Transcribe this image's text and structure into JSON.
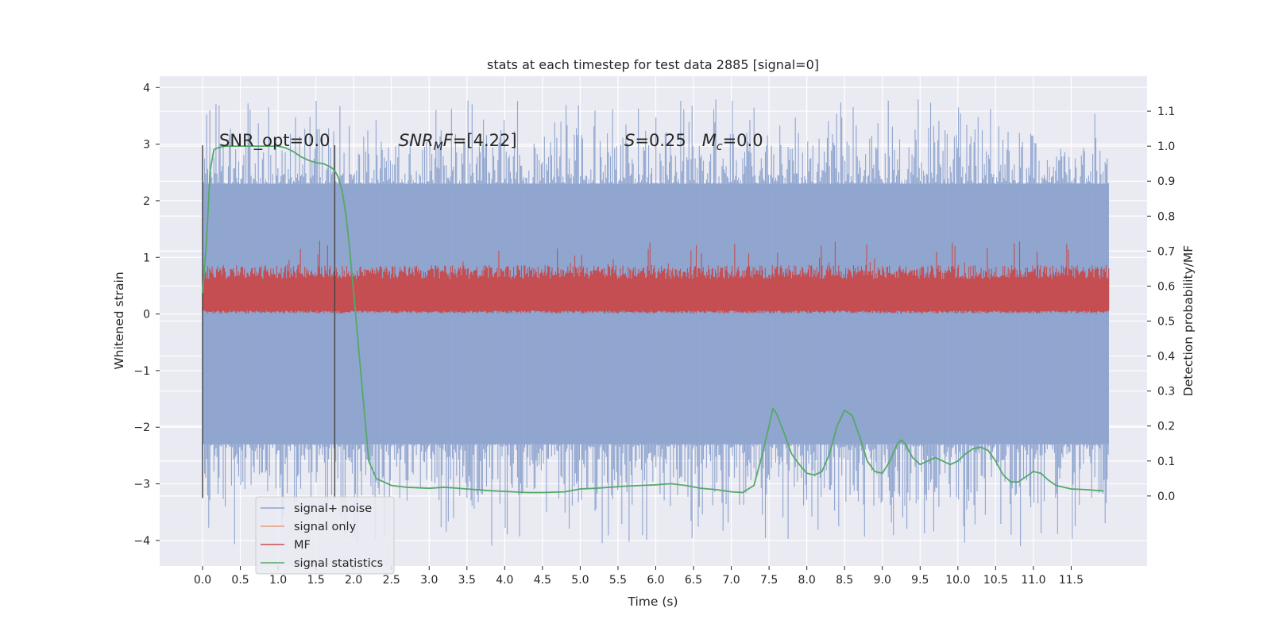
{
  "chart_data": {
    "type": "line",
    "title": "stats at each timestep for test data 2885 [signal=0]",
    "xlabel": "Time (s)",
    "ylabel": "Whitened strain",
    "y2label": "Detection probability/MF",
    "xlim": [
      -0.58,
      12.6
    ],
    "ylim": [
      -4.45,
      4.2
    ],
    "y2lim": [
      -0.2,
      1.2
    ],
    "xticks": [
      0.0,
      0.5,
      1.0,
      1.5,
      2.0,
      2.5,
      3.0,
      3.5,
      4.0,
      4.5,
      5.0,
      5.5,
      6.0,
      6.5,
      7.0,
      7.5,
      8.0,
      8.5,
      9.0,
      9.5,
      10.0,
      10.5,
      11.0,
      11.5
    ],
    "xtick_labels": [
      "0.0",
      "0.5",
      "1.0",
      "1.5",
      "2.0",
      "2.5",
      "3.0",
      "3.5",
      "4.0",
      "4.5",
      "5.0",
      "5.5",
      "6.0",
      "6.5",
      "7.0",
      "7.5",
      "8.0",
      "8.5",
      "9.0",
      "9.5",
      "10.0",
      "10.5",
      "11.0",
      "11.5"
    ],
    "yticks": [
      -4,
      -3,
      -2,
      -1,
      0,
      1,
      2,
      3,
      4
    ],
    "ytick_labels": [
      "−4",
      "−3",
      "−2",
      "−1",
      "0",
      "1",
      "2",
      "3",
      "4"
    ],
    "y2ticks": [
      0.0,
      0.1,
      0.2,
      0.3,
      0.4,
      0.5,
      0.6,
      0.7,
      0.8,
      0.9,
      1.0,
      1.1
    ],
    "y2tick_labels": [
      "0.0",
      "0.1",
      "0.2",
      "0.3",
      "0.4",
      "0.5",
      "0.6",
      "0.7",
      "0.8",
      "0.9",
      "1.0",
      "1.1"
    ],
    "grid": true,
    "legend_location": "lower-left",
    "annotations": {
      "snr_opt": "SNR_opt=0.0",
      "snr_mf": "SNR_MF=[4.22]",
      "s_mc": "S=0.25   M_c=0.0"
    },
    "vlines": [
      0.0,
      1.75
    ],
    "vline_range": [
      -3.25,
      2.98
    ],
    "series": [
      {
        "name": "signal+ noise",
        "color": "#8fa5cf",
        "style": "dense-noise",
        "x_range": [
          0.0,
          12.0
        ],
        "envelope_low": -2.3,
        "envelope_high": 2.3,
        "min": -4.1,
        "max": 3.8
      },
      {
        "name": "signal only",
        "color": "#e6a07f",
        "style": "flat",
        "values": []
      },
      {
        "name": "MF",
        "color": "#c44e52",
        "style": "dense-noise",
        "axis": "right",
        "x_range": [
          0.0,
          12.0
        ],
        "envelope_low": 0.53,
        "envelope_high": 0.64,
        "min": 0.525,
        "max": 0.73
      },
      {
        "name": "signal statistics",
        "color": "#55a868",
        "axis": "right",
        "x": [
          0.0,
          0.05,
          0.1,
          0.15,
          0.2,
          0.3,
          0.4,
          0.5,
          0.6,
          0.7,
          0.8,
          0.9,
          1.0,
          1.1,
          1.2,
          1.3,
          1.4,
          1.5,
          1.6,
          1.7,
          1.75,
          1.8,
          1.85,
          1.9,
          1.95,
          2.0,
          2.1,
          2.2,
          2.3,
          2.5,
          2.7,
          3.0,
          3.2,
          3.5,
          3.8,
          4.0,
          4.3,
          4.5,
          4.8,
          5.0,
          5.2,
          5.4,
          5.6,
          5.8,
          6.0,
          6.2,
          6.4,
          6.6,
          6.8,
          7.0,
          7.15,
          7.3,
          7.4,
          7.5,
          7.55,
          7.6,
          7.7,
          7.8,
          7.9,
          8.0,
          8.1,
          8.2,
          8.3,
          8.4,
          8.5,
          8.6,
          8.7,
          8.8,
          8.9,
          9.0,
          9.1,
          9.2,
          9.25,
          9.3,
          9.4,
          9.5,
          9.6,
          9.7,
          9.8,
          9.9,
          10.0,
          10.1,
          10.2,
          10.3,
          10.4,
          10.5,
          10.6,
          10.7,
          10.8,
          10.9,
          11.0,
          11.1,
          11.2,
          11.3,
          11.5,
          11.7,
          11.93
        ],
        "values": [
          0.58,
          0.72,
          0.93,
          0.99,
          0.995,
          1.0,
          1.0,
          1.0,
          1.0,
          1.0,
          1.0,
          1.0,
          1.0,
          0.995,
          0.985,
          0.97,
          0.96,
          0.953,
          0.95,
          0.94,
          0.93,
          0.91,
          0.87,
          0.8,
          0.7,
          0.58,
          0.34,
          0.1,
          0.05,
          0.03,
          0.025,
          0.022,
          0.025,
          0.02,
          0.015,
          0.013,
          0.01,
          0.01,
          0.012,
          0.02,
          0.022,
          0.025,
          0.028,
          0.03,
          0.032,
          0.035,
          0.03,
          0.022,
          0.018,
          0.012,
          0.01,
          0.03,
          0.11,
          0.2,
          0.25,
          0.235,
          0.18,
          0.12,
          0.09,
          0.065,
          0.06,
          0.07,
          0.12,
          0.2,
          0.245,
          0.23,
          0.17,
          0.1,
          0.07,
          0.065,
          0.1,
          0.15,
          0.16,
          0.15,
          0.11,
          0.09,
          0.1,
          0.11,
          0.1,
          0.09,
          0.1,
          0.12,
          0.135,
          0.14,
          0.13,
          0.1,
          0.06,
          0.04,
          0.04,
          0.055,
          0.07,
          0.065,
          0.045,
          0.03,
          0.02,
          0.018,
          0.014
        ]
      }
    ]
  }
}
